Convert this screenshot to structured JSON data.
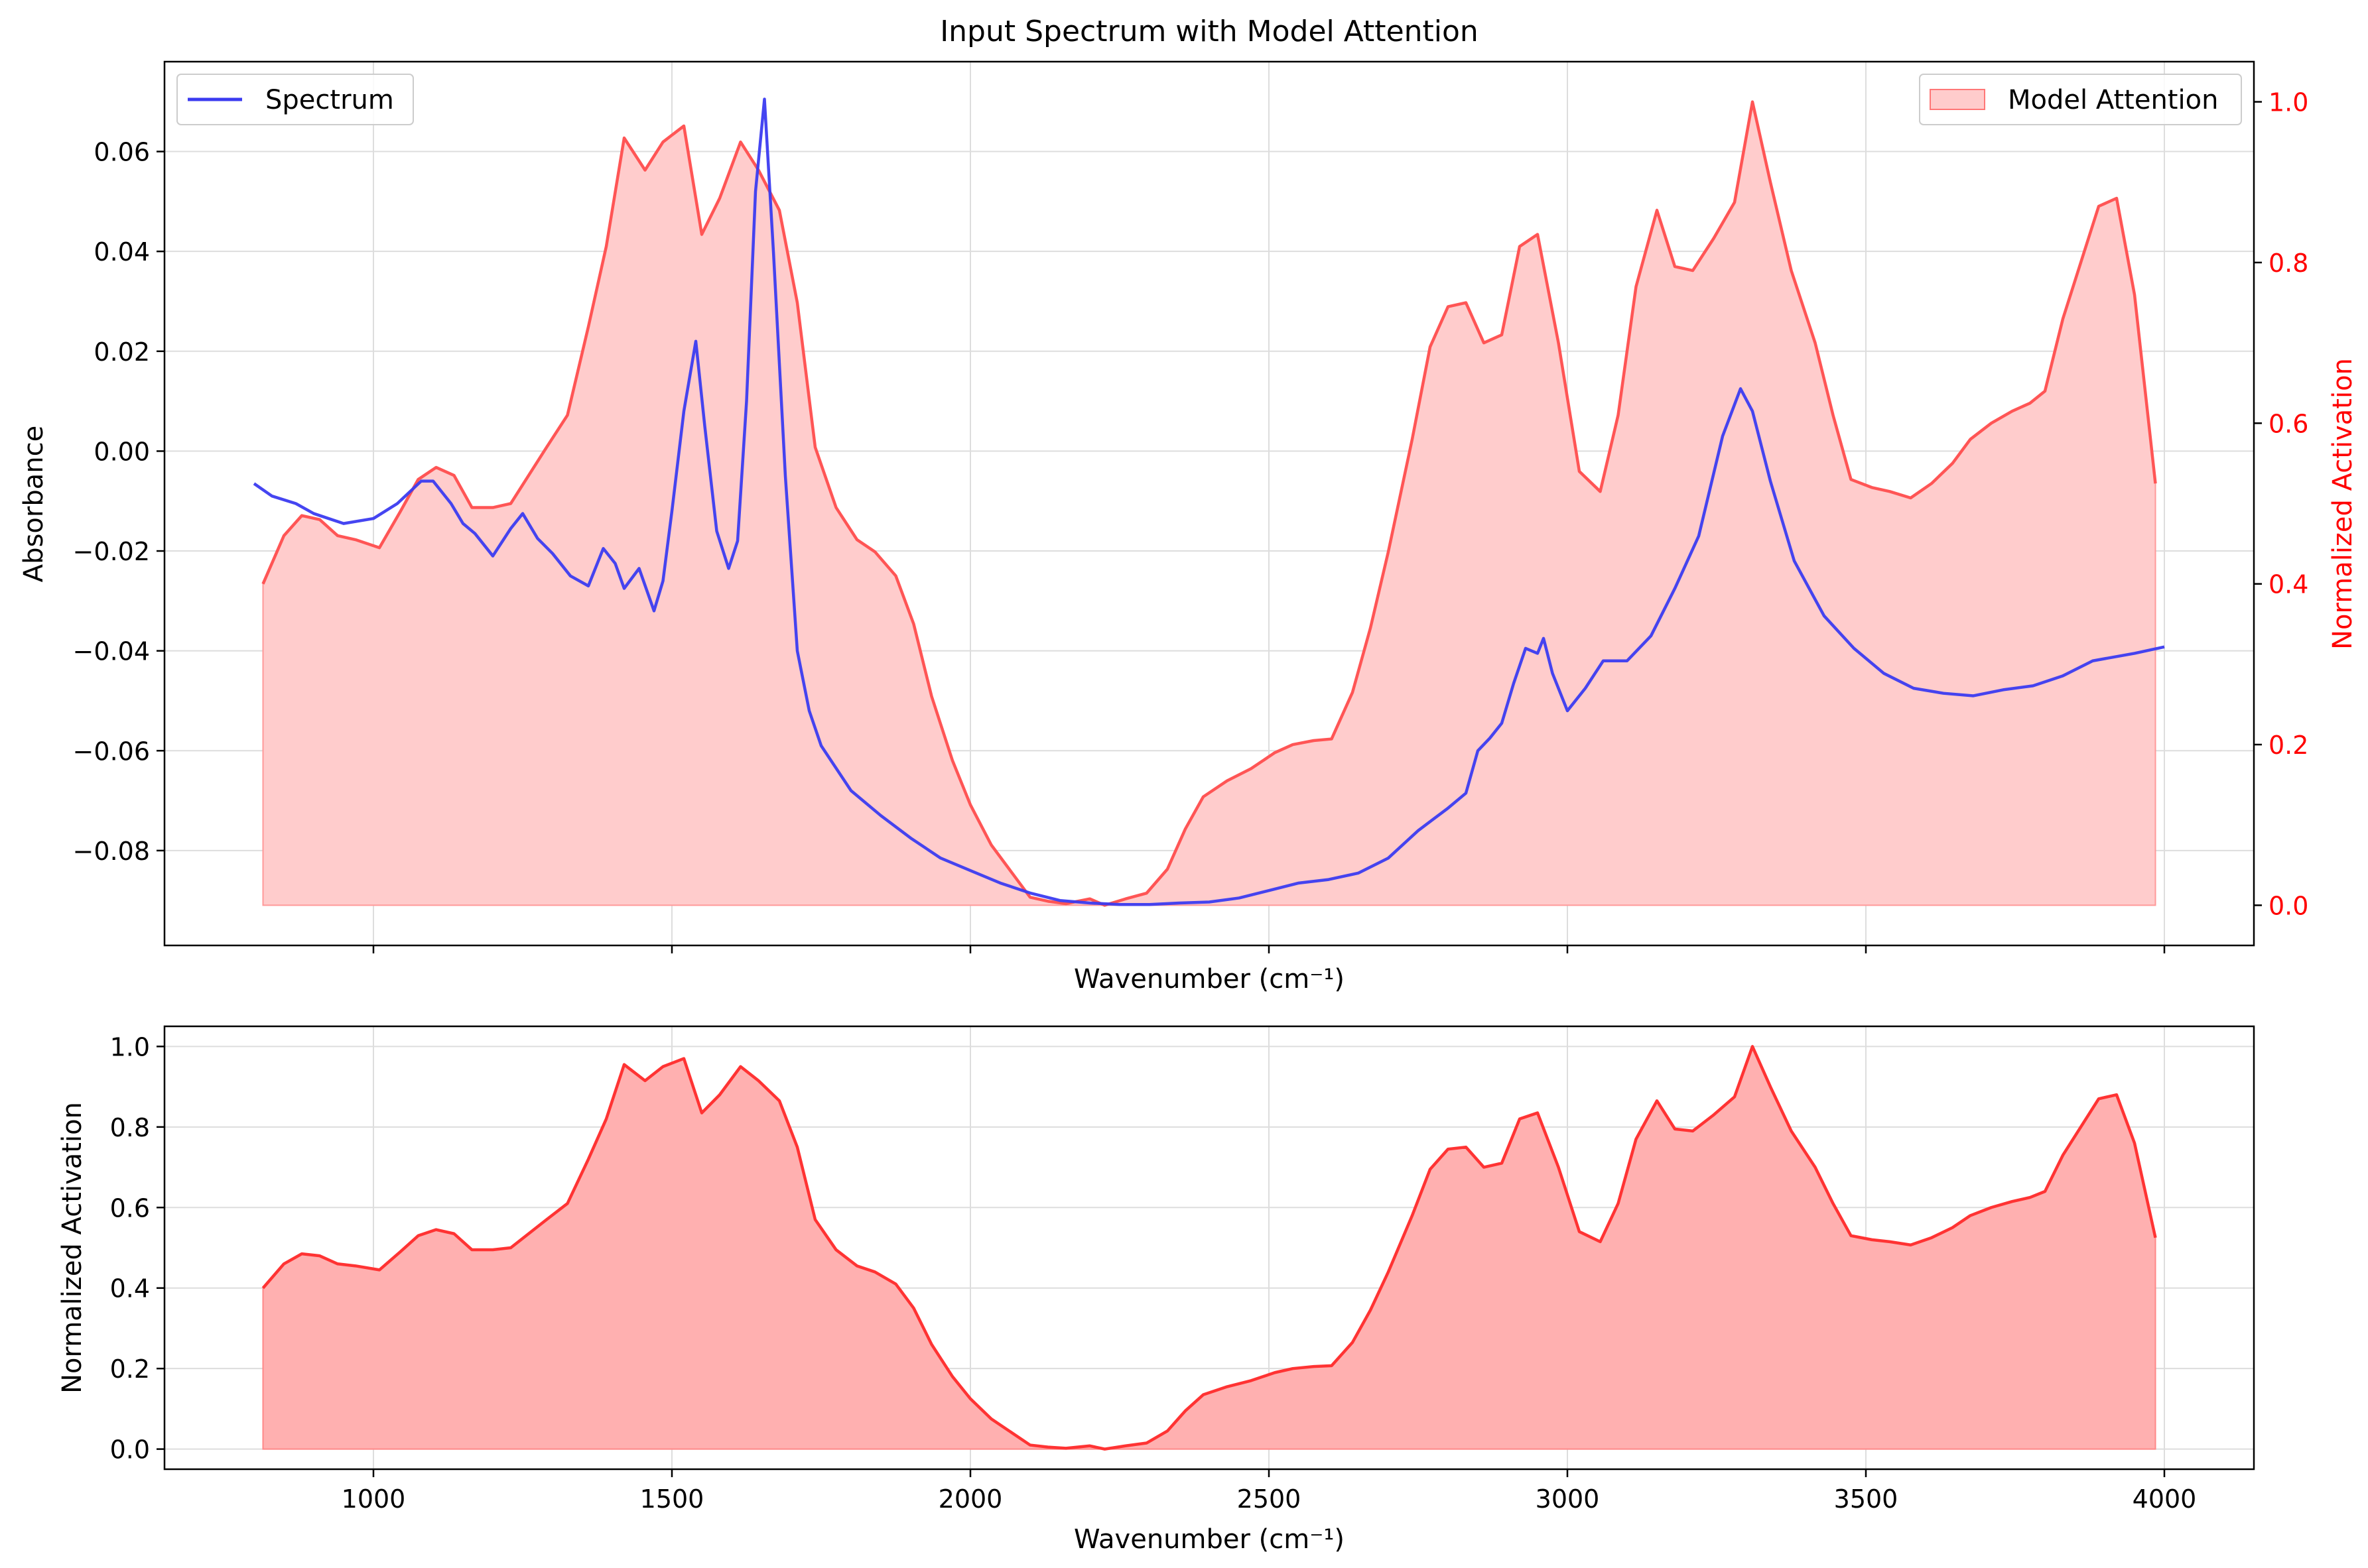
{
  "title": "Input Spectrum with Model Attention",
  "colors": {
    "spectrum": "#3b3bf0",
    "attention_line": "#ff3333",
    "attention_fill_top": "#ffcccc",
    "attention_fill_bottom": "#ffb0b0",
    "right_axis": "#ff0000",
    "grid": "#dddddd"
  },
  "chart_data": [
    {
      "type": "line",
      "panel": "top",
      "title": "Input Spectrum with Model Attention",
      "xlabel": "Wavenumber (cm⁻¹)",
      "ylabel": "Absorbance",
      "y2label": "Normalized Activation",
      "xlim": [
        650,
        4150
      ],
      "ylim": [
        -0.099,
        0.078
      ],
      "y2lim": [
        -0.05,
        1.05
      ],
      "xticks": [
        1000,
        1500,
        2000,
        2500,
        3000,
        3500,
        4000
      ],
      "yticks": [
        -0.08,
        -0.06,
        -0.04,
        -0.02,
        0.0,
        0.02,
        0.04,
        0.06
      ],
      "ytick_labels": [
        "−0.08",
        "−0.06",
        "−0.04",
        "−0.02",
        "0.00",
        "0.02",
        "0.04",
        "0.06"
      ],
      "y2ticks": [
        0.0,
        0.2,
        0.4,
        0.6,
        0.8,
        1.0
      ],
      "y2tick_labels": [
        "0.0",
        "0.2",
        "0.4",
        "0.6",
        "0.8",
        "1.0"
      ],
      "grid": true,
      "legends": [
        {
          "placement": "top-left",
          "entries": [
            {
              "label": "Spectrum",
              "style": "line"
            }
          ]
        },
        {
          "placement": "top-right",
          "entries": [
            {
              "label": "Model Attention",
              "style": "patch"
            }
          ]
        }
      ],
      "series": [
        {
          "name": "Spectrum",
          "axis": "left",
          "points": [
            [
              800,
              -0.0065
            ],
            [
              830,
              -0.009
            ],
            [
              870,
              -0.0105
            ],
            [
              900,
              -0.0125
            ],
            [
              950,
              -0.0145
            ],
            [
              1000,
              -0.0135
            ],
            [
              1040,
              -0.0105
            ],
            [
              1080,
              -0.006
            ],
            [
              1100,
              -0.006
            ],
            [
              1130,
              -0.0105
            ],
            [
              1150,
              -0.0145
            ],
            [
              1170,
              -0.0165
            ],
            [
              1200,
              -0.021
            ],
            [
              1230,
              -0.0155
            ],
            [
              1250,
              -0.0125
            ],
            [
              1275,
              -0.0175
            ],
            [
              1300,
              -0.0205
            ],
            [
              1330,
              -0.025
            ],
            [
              1360,
              -0.027
            ],
            [
              1385,
              -0.0195
            ],
            [
              1405,
              -0.0225
            ],
            [
              1420,
              -0.0275
            ],
            [
              1445,
              -0.0235
            ],
            [
              1470,
              -0.032
            ],
            [
              1485,
              -0.026
            ],
            [
              1500,
              -0.012
            ],
            [
              1520,
              0.008
            ],
            [
              1540,
              0.022
            ],
            [
              1555,
              0.005
            ],
            [
              1575,
              -0.016
            ],
            [
              1595,
              -0.0235
            ],
            [
              1610,
              -0.018
            ],
            [
              1625,
              0.01
            ],
            [
              1640,
              0.052
            ],
            [
              1655,
              0.0705
            ],
            [
              1670,
              0.04
            ],
            [
              1690,
              -0.005
            ],
            [
              1710,
              -0.04
            ],
            [
              1730,
              -0.052
            ],
            [
              1750,
              -0.059
            ],
            [
              1800,
              -0.068
            ],
            [
              1850,
              -0.073
            ],
            [
              1900,
              -0.0775
            ],
            [
              1950,
              -0.0815
            ],
            [
              2000,
              -0.084
            ],
            [
              2050,
              -0.0865
            ],
            [
              2100,
              -0.0885
            ],
            [
              2150,
              -0.09
            ],
            [
              2200,
              -0.0905
            ],
            [
              2250,
              -0.0908
            ],
            [
              2300,
              -0.0908
            ],
            [
              2350,
              -0.0905
            ],
            [
              2400,
              -0.0903
            ],
            [
              2450,
              -0.0895
            ],
            [
              2500,
              -0.088
            ],
            [
              2550,
              -0.0865
            ],
            [
              2600,
              -0.0858
            ],
            [
              2650,
              -0.0845
            ],
            [
              2700,
              -0.0815
            ],
            [
              2750,
              -0.076
            ],
            [
              2800,
              -0.0715
            ],
            [
              2830,
              -0.0685
            ],
            [
              2850,
              -0.06
            ],
            [
              2870,
              -0.0575
            ],
            [
              2890,
              -0.0545
            ],
            [
              2910,
              -0.0465
            ],
            [
              2930,
              -0.0395
            ],
            [
              2950,
              -0.0405
            ],
            [
              2960,
              -0.0375
            ],
            [
              2975,
              -0.0445
            ],
            [
              3000,
              -0.052
            ],
            [
              3030,
              -0.0475
            ],
            [
              3060,
              -0.042
            ],
            [
              3100,
              -0.042
            ],
            [
              3140,
              -0.037
            ],
            [
              3180,
              -0.0275
            ],
            [
              3220,
              -0.017
            ],
            [
              3260,
              0.003
            ],
            [
              3290,
              0.0125
            ],
            [
              3310,
              0.008
            ],
            [
              3340,
              -0.006
            ],
            [
              3380,
              -0.022
            ],
            [
              3430,
              -0.033
            ],
            [
              3480,
              -0.0395
            ],
            [
              3530,
              -0.0445
            ],
            [
              3580,
              -0.0475
            ],
            [
              3630,
              -0.0485
            ],
            [
              3680,
              -0.049
            ],
            [
              3730,
              -0.0478
            ],
            [
              3780,
              -0.047
            ],
            [
              3830,
              -0.045
            ],
            [
              3880,
              -0.042
            ],
            [
              3950,
              -0.0405
            ],
            [
              4000,
              -0.0392
            ]
          ]
        },
        {
          "name": "Model Attention",
          "axis": "right",
          "points": [
            [
              815,
              0.4
            ],
            [
              850,
              0.46
            ],
            [
              880,
              0.485
            ],
            [
              910,
              0.48
            ],
            [
              940,
              0.46
            ],
            [
              970,
              0.455
            ],
            [
              1010,
              0.445
            ],
            [
              1045,
              0.49
            ],
            [
              1075,
              0.53
            ],
            [
              1105,
              0.545
            ],
            [
              1135,
              0.535
            ],
            [
              1165,
              0.495
            ],
            [
              1200,
              0.495
            ],
            [
              1230,
              0.5
            ],
            [
              1260,
              0.535
            ],
            [
              1290,
              0.57
            ],
            [
              1325,
              0.61
            ],
            [
              1360,
              0.72
            ],
            [
              1390,
              0.82
            ],
            [
              1420,
              0.955
            ],
            [
              1455,
              0.915
            ],
            [
              1485,
              0.95
            ],
            [
              1520,
              0.97
            ],
            [
              1550,
              0.835
            ],
            [
              1580,
              0.88
            ],
            [
              1615,
              0.95
            ],
            [
              1645,
              0.915
            ],
            [
              1680,
              0.865
            ],
            [
              1710,
              0.75
            ],
            [
              1740,
              0.57
            ],
            [
              1775,
              0.495
            ],
            [
              1810,
              0.455
            ],
            [
              1840,
              0.44
            ],
            [
              1875,
              0.41
            ],
            [
              1905,
              0.35
            ],
            [
              1935,
              0.26
            ],
            [
              1970,
              0.18
            ],
            [
              2000,
              0.125
            ],
            [
              2035,
              0.075
            ],
            [
              2065,
              0.045
            ],
            [
              2100,
              0.01
            ],
            [
              2130,
              0.005
            ],
            [
              2160,
              0.002
            ],
            [
              2200,
              0.008
            ],
            [
              2225,
              0.0
            ],
            [
              2260,
              0.008
            ],
            [
              2295,
              0.015
            ],
            [
              2330,
              0.045
            ],
            [
              2360,
              0.095
            ],
            [
              2390,
              0.135
            ],
            [
              2430,
              0.155
            ],
            [
              2470,
              0.17
            ],
            [
              2510,
              0.19
            ],
            [
              2540,
              0.2
            ],
            [
              2575,
              0.205
            ],
            [
              2605,
              0.207
            ],
            [
              2640,
              0.265
            ],
            [
              2670,
              0.345
            ],
            [
              2700,
              0.44
            ],
            [
              2740,
              0.58
            ],
            [
              2770,
              0.695
            ],
            [
              2800,
              0.745
            ],
            [
              2830,
              0.75
            ],
            [
              2860,
              0.7
            ],
            [
              2890,
              0.71
            ],
            [
              2920,
              0.82
            ],
            [
              2950,
              0.835
            ],
            [
              2985,
              0.7
            ],
            [
              3020,
              0.54
            ],
            [
              3055,
              0.515
            ],
            [
              3085,
              0.61
            ],
            [
              3115,
              0.77
            ],
            [
              3150,
              0.865
            ],
            [
              3180,
              0.795
            ],
            [
              3210,
              0.79
            ],
            [
              3245,
              0.83
            ],
            [
              3280,
              0.875
            ],
            [
              3310,
              1.0
            ],
            [
              3340,
              0.9
            ],
            [
              3375,
              0.79
            ],
            [
              3415,
              0.7
            ],
            [
              3445,
              0.61
            ],
            [
              3475,
              0.53
            ],
            [
              3510,
              0.52
            ],
            [
              3540,
              0.515
            ],
            [
              3575,
              0.507
            ],
            [
              3610,
              0.525
            ],
            [
              3645,
              0.55
            ],
            [
              3675,
              0.58
            ],
            [
              3710,
              0.6
            ],
            [
              3745,
              0.615
            ],
            [
              3775,
              0.625
            ],
            [
              3800,
              0.64
            ],
            [
              3830,
              0.73
            ],
            [
              3860,
              0.8
            ],
            [
              3890,
              0.87
            ],
            [
              3920,
              0.88
            ],
            [
              3950,
              0.76
            ],
            [
              3985,
              0.525
            ]
          ]
        }
      ]
    },
    {
      "type": "area",
      "panel": "bottom",
      "xlabel": "Wavenumber (cm⁻¹)",
      "ylabel": "Normalized Activation",
      "xlim": [
        650,
        4150
      ],
      "ylim": [
        -0.05,
        1.05
      ],
      "xticks": [
        1000,
        1500,
        2000,
        2500,
        3000,
        3500,
        4000
      ],
      "xtick_labels": [
        "1000",
        "1500",
        "2000",
        "2500",
        "3000",
        "3500",
        "4000"
      ],
      "yticks": [
        0.0,
        0.2,
        0.4,
        0.6,
        0.8,
        1.0
      ],
      "ytick_labels": [
        "0.0",
        "0.2",
        "0.4",
        "0.6",
        "0.8",
        "1.0"
      ],
      "grid": true,
      "series_ref": "Model Attention"
    }
  ]
}
